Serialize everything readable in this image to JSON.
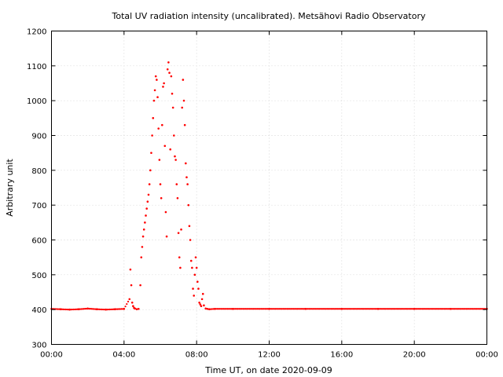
{
  "chart_data": {
    "type": "scatter",
    "title": "Total UV radiation intensity (uncalibrated). Metsähovi Radio Observatory",
    "xlabel": "Time UT, on date 2020-09-09",
    "ylabel": "Arbitrary unit",
    "xlim": [
      0,
      24
    ],
    "ylim": [
      300,
      1200
    ],
    "x_unit": "hours UT",
    "x_ticks": [
      {
        "value": 0,
        "label": "00:00"
      },
      {
        "value": 4,
        "label": "04:00"
      },
      {
        "value": 8,
        "label": "08:00"
      },
      {
        "value": 12,
        "label": "12:00"
      },
      {
        "value": 16,
        "label": "16:00"
      },
      {
        "value": 20,
        "label": "20:00"
      },
      {
        "value": 24,
        "label": "00:00"
      }
    ],
    "y_ticks": [
      300,
      400,
      500,
      600,
      700,
      800,
      900,
      1000,
      1100,
      1200
    ],
    "grid": true,
    "marker_color": "#ff0000",
    "series": [
      {
        "x": [
          0.0,
          0.5,
          1.0,
          1.5,
          2.0,
          2.5,
          3.0,
          3.5,
          4.0,
          4.3,
          4.35,
          4.4,
          4.45,
          4.5,
          4.55,
          4.6,
          4.7,
          4.8,
          4.9,
          4.95,
          5.0,
          5.05,
          5.1,
          5.15,
          5.2,
          5.25,
          5.3,
          5.35,
          5.4,
          5.45,
          5.5,
          5.55,
          5.6,
          5.65,
          5.7,
          5.75,
          5.8,
          5.85,
          5.9,
          5.95,
          6.0,
          6.05,
          6.1,
          6.15,
          6.2,
          6.25,
          6.3,
          6.35,
          6.4,
          6.45,
          6.5,
          6.55,
          6.6,
          6.65,
          6.7,
          6.75,
          6.8,
          6.85,
          6.9,
          6.95,
          7.0,
          7.05,
          7.1,
          7.15,
          7.2,
          7.25,
          7.3,
          7.35,
          7.4,
          7.45,
          7.5,
          7.55,
          7.6,
          7.65,
          7.7,
          7.75,
          7.8,
          7.85,
          7.9,
          7.95,
          8.0,
          8.05,
          8.1,
          8.15,
          8.2,
          8.25,
          8.3,
          8.35,
          8.4,
          8.5,
          8.6,
          8.7,
          9.0,
          10.0,
          12.0,
          14.0,
          16.0,
          18.0,
          20.0,
          22.0,
          24.0
        ],
        "y": [
          402,
          401,
          400,
          401,
          403,
          401,
          400,
          401,
          402,
          430,
          515,
          470,
          420,
          410,
          405,
          403,
          401,
          402,
          470,
          550,
          580,
          610,
          630,
          650,
          670,
          690,
          710,
          730,
          760,
          800,
          850,
          900,
          950,
          1000,
          1030,
          1070,
          1060,
          1010,
          920,
          830,
          760,
          720,
          930,
          1040,
          1050,
          870,
          680,
          610,
          1090,
          1110,
          1080,
          860,
          1070,
          1020,
          980,
          900,
          840,
          830,
          760,
          720,
          620,
          550,
          520,
          630,
          980,
          1060,
          1000,
          930,
          820,
          780,
          760,
          700,
          640,
          600,
          540,
          520,
          460,
          440,
          500,
          550,
          520,
          480,
          460,
          420,
          415,
          410,
          430,
          445,
          412,
          403,
          402,
          401,
          402,
          402,
          402,
          402,
          402,
          402,
          402,
          402,
          402
        ]
      }
    ]
  }
}
